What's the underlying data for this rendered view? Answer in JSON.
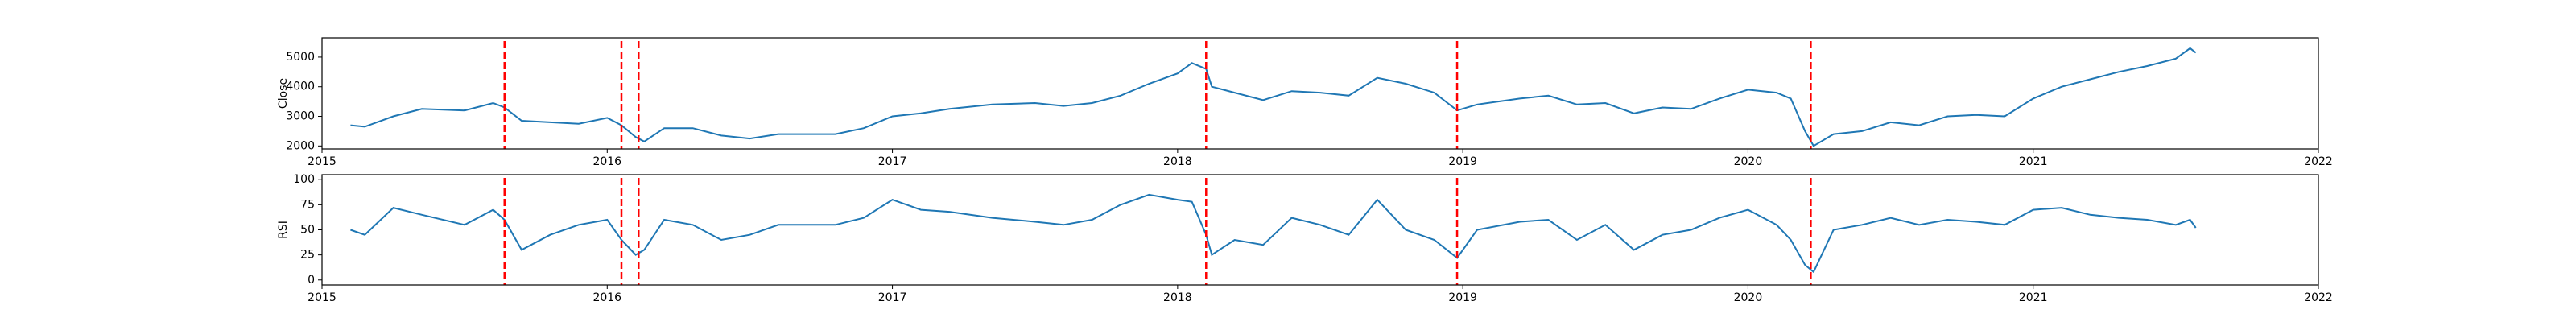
{
  "chart_data": [
    {
      "type": "line",
      "y_label": "Close",
      "color": "#1f77b4",
      "x": [
        2015.1,
        2015.15,
        2015.25,
        2015.35,
        2015.5,
        2015.6,
        2015.64,
        2015.7,
        2015.8,
        2015.9,
        2016.0,
        2016.05,
        2016.1,
        2016.13,
        2016.2,
        2016.3,
        2016.4,
        2016.5,
        2016.6,
        2016.8,
        2016.9,
        2017.0,
        2017.1,
        2017.2,
        2017.35,
        2017.5,
        2017.6,
        2017.7,
        2017.8,
        2017.9,
        2018.0,
        2018.05,
        2018.1,
        2018.12,
        2018.2,
        2018.3,
        2018.4,
        2018.5,
        2018.6,
        2018.7,
        2018.8,
        2018.9,
        2018.98,
        2019.05,
        2019.2,
        2019.3,
        2019.4,
        2019.5,
        2019.6,
        2019.7,
        2019.8,
        2019.9,
        2020.0,
        2020.1,
        2020.15,
        2020.2,
        2020.23,
        2020.3,
        2020.4,
        2020.5,
        2020.6,
        2020.7,
        2020.8,
        2020.9,
        2021.0,
        2021.1,
        2021.2,
        2021.3,
        2021.4,
        2021.5,
        2021.55,
        2021.57
      ],
      "values": [
        2700,
        2650,
        3000,
        3250,
        3200,
        3450,
        3300,
        2850,
        2800,
        2750,
        2950,
        2700,
        2300,
        2150,
        2600,
        2600,
        2350,
        2250,
        2400,
        2400,
        2600,
        3000,
        3100,
        3250,
        3400,
        3450,
        3350,
        3450,
        3700,
        4100,
        4450,
        4800,
        4600,
        4000,
        3800,
        3550,
        3850,
        3800,
        3700,
        4300,
        4100,
        3800,
        3200,
        3400,
        3600,
        3700,
        3400,
        3450,
        3100,
        3300,
        3250,
        3600,
        3900,
        3800,
        3600,
        2500,
        2000,
        2400,
        2500,
        2800,
        2700,
        3000,
        3050,
        3000,
        3600,
        4000,
        4250,
        4500,
        4700,
        4950,
        5300,
        5150
      ],
      "xlim": [
        2015,
        2022
      ],
      "xticks": [
        2015,
        2016,
        2017,
        2018,
        2019,
        2020,
        2021,
        2022
      ],
      "ylim": [
        1900,
        5650
      ],
      "yticks": [
        2000,
        3000,
        4000,
        5000
      ],
      "vlines": [
        2015.64,
        2016.05,
        2016.11,
        2018.1,
        2018.98,
        2020.22
      ],
      "vline_color": "#ff0000"
    },
    {
      "type": "line",
      "y_label": "RSI",
      "color": "#1f77b4",
      "x": [
        2015.1,
        2015.15,
        2015.25,
        2015.35,
        2015.5,
        2015.6,
        2015.64,
        2015.7,
        2015.8,
        2015.9,
        2016.0,
        2016.05,
        2016.1,
        2016.13,
        2016.2,
        2016.3,
        2016.4,
        2016.5,
        2016.6,
        2016.8,
        2016.9,
        2017.0,
        2017.1,
        2017.2,
        2017.35,
        2017.5,
        2017.6,
        2017.7,
        2017.8,
        2017.9,
        2018.0,
        2018.05,
        2018.1,
        2018.12,
        2018.2,
        2018.3,
        2018.4,
        2018.5,
        2018.6,
        2018.7,
        2018.8,
        2018.9,
        2018.98,
        2019.05,
        2019.2,
        2019.3,
        2019.4,
        2019.5,
        2019.6,
        2019.7,
        2019.8,
        2019.9,
        2020.0,
        2020.1,
        2020.15,
        2020.2,
        2020.23,
        2020.3,
        2020.4,
        2020.5,
        2020.6,
        2020.7,
        2020.8,
        2020.9,
        2021.0,
        2021.1,
        2021.2,
        2021.3,
        2021.4,
        2021.5,
        2021.55,
        2021.57
      ],
      "values": [
        50,
        45,
        72,
        65,
        55,
        70,
        60,
        30,
        45,
        55,
        60,
        40,
        25,
        30,
        60,
        55,
        40,
        45,
        55,
        55,
        62,
        80,
        70,
        68,
        62,
        58,
        55,
        60,
        75,
        85,
        80,
        78,
        45,
        25,
        40,
        35,
        62,
        55,
        45,
        80,
        50,
        40,
        22,
        50,
        58,
        60,
        40,
        55,
        30,
        45,
        50,
        62,
        70,
        55,
        40,
        15,
        8,
        50,
        55,
        62,
        55,
        60,
        58,
        55,
        70,
        72,
        65,
        62,
        60,
        55,
        60,
        52
      ],
      "xlim": [
        2015,
        2022
      ],
      "xticks": [
        2015,
        2016,
        2017,
        2018,
        2019,
        2020,
        2021,
        2022
      ],
      "ylim": [
        -5,
        105
      ],
      "yticks": [
        0,
        25,
        50,
        75,
        100
      ],
      "vlines": [
        2015.64,
        2016.05,
        2016.11,
        2018.1,
        2018.98,
        2020.22
      ],
      "vline_color": "#ff0000"
    }
  ]
}
